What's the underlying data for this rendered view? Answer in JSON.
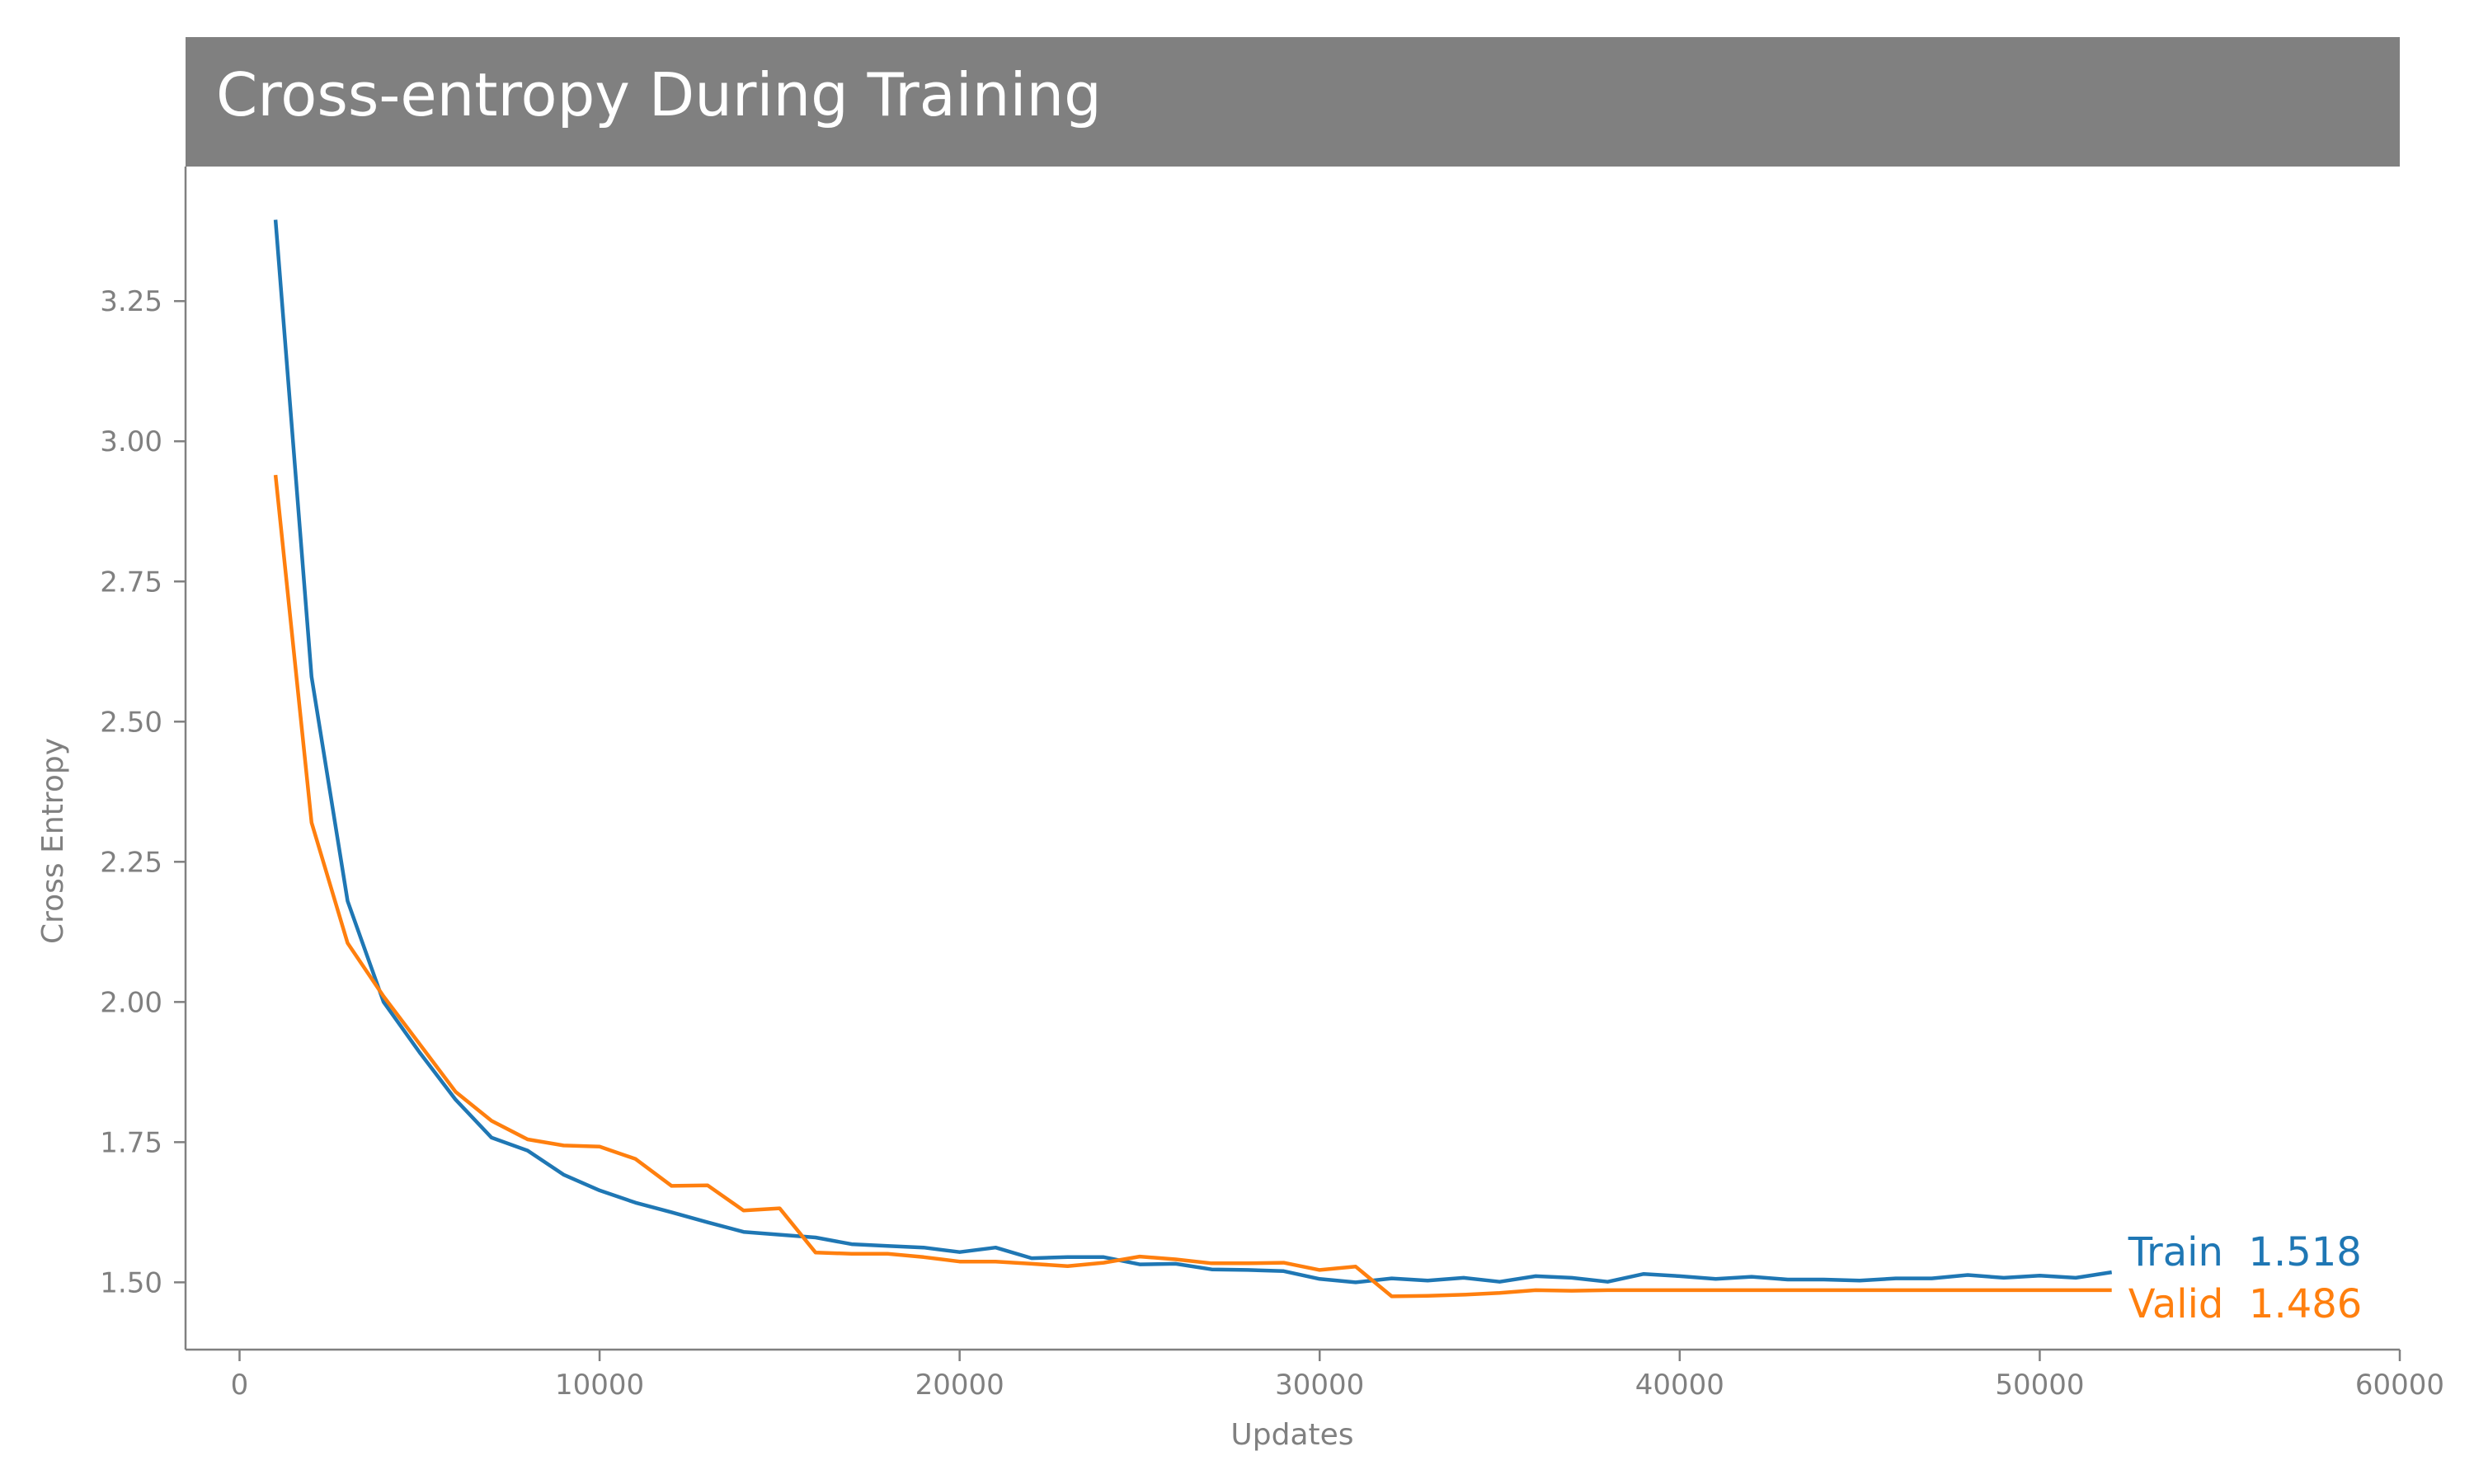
{
  "chart_data": {
    "type": "line",
    "title": "Cross-entropy During Training",
    "xlabel": "Updates",
    "ylabel": "Cross Entropy",
    "xlim": [
      -1500,
      60000
    ],
    "ylim": [
      1.38,
      3.49
    ],
    "xticks": [
      0,
      10000,
      20000,
      30000,
      40000,
      50000,
      60000
    ],
    "xtick_labels": [
      "0",
      "10000",
      "20000",
      "30000",
      "40000",
      "50000",
      "60000"
    ],
    "yticks": [
      1.5,
      1.75,
      2.0,
      2.25,
      2.5,
      2.75,
      3.0,
      3.25
    ],
    "ytick_labels": [
      "1.50",
      "1.75",
      "2.00",
      "2.25",
      "2.50",
      "2.75",
      "3.00",
      "3.25"
    ],
    "grid": false,
    "legend": "end-of-line labels",
    "title_bar_color": "#808080",
    "x": [
      1000,
      2000,
      3000,
      4000,
      5000,
      6000,
      7000,
      8000,
      9000,
      10000,
      11000,
      12000,
      13000,
      14000,
      15000,
      16000,
      17000,
      18000,
      19000,
      20000,
      21000,
      22000,
      23000,
      24000,
      25000,
      26000,
      27000,
      28000,
      29000,
      30000,
      31000,
      32000,
      33000,
      34000,
      35000,
      36000,
      37000,
      38000,
      39000,
      40000,
      41000,
      42000,
      43000,
      44000,
      45000,
      46000,
      47000,
      48000,
      49000,
      50000,
      51000,
      52000
    ],
    "series": [
      {
        "name": "Train",
        "color": "#1f77b4",
        "end_label": "Train  1.518",
        "values": [
          3.395,
          2.58,
          2.18,
          2.0,
          1.91,
          1.826,
          1.758,
          1.735,
          1.692,
          1.664,
          1.642,
          1.625,
          1.607,
          1.59,
          1.585,
          1.58,
          1.568,
          1.565,
          1.562,
          1.554,
          1.562,
          1.543,
          1.545,
          1.545,
          1.532,
          1.533,
          1.523,
          1.522,
          1.52,
          1.506,
          1.5,
          1.507,
          1.503,
          1.508,
          1.501,
          1.511,
          1.508,
          1.501,
          1.515,
          1.511,
          1.506,
          1.51,
          1.505,
          1.505,
          1.503,
          1.507,
          1.507,
          1.513,
          1.508,
          1.512,
          1.508,
          1.518
        ]
      },
      {
        "name": "Valid",
        "color": "#ff7f0e",
        "end_label": "Valid  1.486",
        "values": [
          2.94,
          2.32,
          2.105,
          2.01,
          1.925,
          1.84,
          1.788,
          1.755,
          1.744,
          1.742,
          1.72,
          1.672,
          1.673,
          1.628,
          1.632,
          1.553,
          1.551,
          1.551,
          1.545,
          1.537,
          1.537,
          1.533,
          1.529,
          1.535,
          1.546,
          1.541,
          1.534,
          1.534,
          1.535,
          1.522,
          1.528,
          1.475,
          1.476,
          1.478,
          1.481,
          1.486,
          1.485,
          1.486,
          1.486,
          1.486,
          1.486,
          1.486,
          1.486,
          1.486,
          1.486,
          1.486,
          1.486,
          1.486,
          1.486,
          1.486,
          1.486,
          1.486
        ]
      }
    ]
  }
}
